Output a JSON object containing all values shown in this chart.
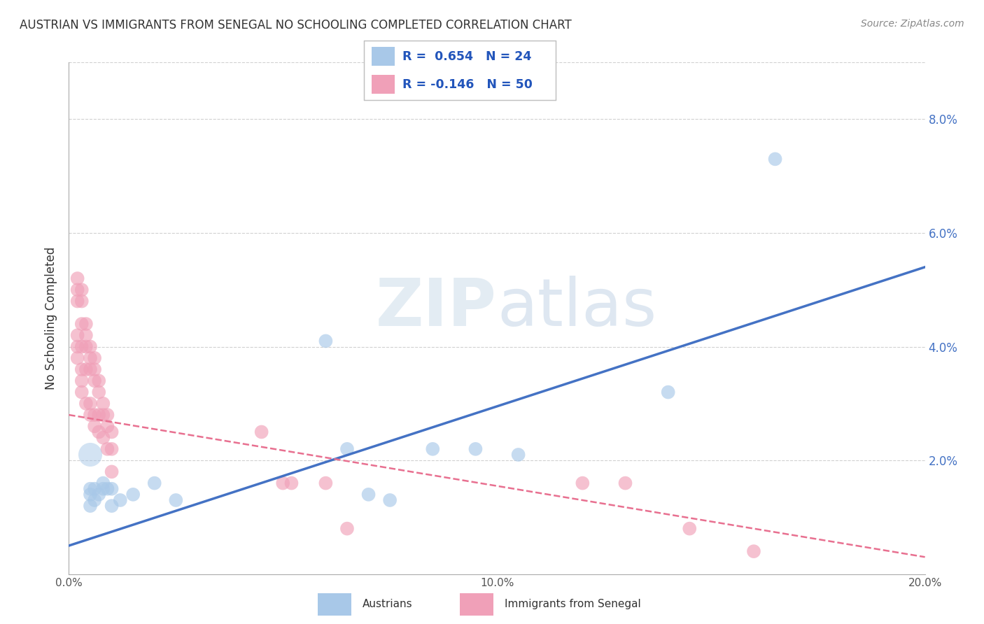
{
  "title": "AUSTRIAN VS IMMIGRANTS FROM SENEGAL NO SCHOOLING COMPLETED CORRELATION CHART",
  "source": "Source: ZipAtlas.com",
  "ylabel": "No Schooling Completed",
  "watermark": "ZIPatlas",
  "xmin": 0.0,
  "xmax": 0.2,
  "ymin": 0.0,
  "ymax": 0.09,
  "yticks": [
    0.02,
    0.04,
    0.06,
    0.08
  ],
  "ytick_labels": [
    "2.0%",
    "4.0%",
    "6.0%",
    "8.0%"
  ],
  "xticks": [
    0.0,
    0.05,
    0.1,
    0.15,
    0.2
  ],
  "xtick_labels": [
    "0.0%",
    "",
    "10.0%",
    "",
    "20.0%"
  ],
  "blue_color": "#a8c8e8",
  "pink_color": "#f0a0b8",
  "blue_line_color": "#4472c4",
  "pink_line_color": "#e87090",
  "grid_color": "#d0d0d0",
  "austrians_x": [
    0.005,
    0.005,
    0.005,
    0.006,
    0.006,
    0.007,
    0.008,
    0.008,
    0.009,
    0.01,
    0.01,
    0.012,
    0.015,
    0.02,
    0.025,
    0.06,
    0.065,
    0.07,
    0.075,
    0.085,
    0.095,
    0.105,
    0.14,
    0.165
  ],
  "austrians_y": [
    0.012,
    0.014,
    0.015,
    0.013,
    0.015,
    0.014,
    0.015,
    0.016,
    0.015,
    0.015,
    0.012,
    0.013,
    0.014,
    0.016,
    0.013,
    0.041,
    0.022,
    0.014,
    0.013,
    0.022,
    0.022,
    0.021,
    0.032,
    0.073
  ],
  "senegal_x": [
    0.002,
    0.002,
    0.002,
    0.002,
    0.002,
    0.002,
    0.003,
    0.003,
    0.003,
    0.003,
    0.003,
    0.003,
    0.003,
    0.004,
    0.004,
    0.004,
    0.004,
    0.004,
    0.005,
    0.005,
    0.005,
    0.005,
    0.005,
    0.006,
    0.006,
    0.006,
    0.006,
    0.006,
    0.007,
    0.007,
    0.007,
    0.007,
    0.008,
    0.008,
    0.008,
    0.009,
    0.009,
    0.009,
    0.01,
    0.01,
    0.01,
    0.045,
    0.05,
    0.052,
    0.06,
    0.065,
    0.12,
    0.13,
    0.145,
    0.16
  ],
  "senegal_y": [
    0.048,
    0.05,
    0.052,
    0.042,
    0.04,
    0.038,
    0.05,
    0.048,
    0.044,
    0.04,
    0.036,
    0.034,
    0.032,
    0.044,
    0.042,
    0.04,
    0.036,
    0.03,
    0.04,
    0.038,
    0.036,
    0.03,
    0.028,
    0.038,
    0.036,
    0.034,
    0.028,
    0.026,
    0.034,
    0.032,
    0.028,
    0.025,
    0.03,
    0.028,
    0.024,
    0.028,
    0.026,
    0.022,
    0.025,
    0.022,
    0.018,
    0.025,
    0.016,
    0.016,
    0.016,
    0.008,
    0.016,
    0.016,
    0.008,
    0.004
  ],
  "blue_trend_x": [
    0.0,
    0.2
  ],
  "blue_trend_y": [
    0.005,
    0.054
  ],
  "pink_trend_x": [
    0.0,
    0.2
  ],
  "pink_trend_y": [
    0.028,
    0.003
  ],
  "austrians_large_x": [
    0.005
  ],
  "austrians_large_y": [
    0.021
  ]
}
